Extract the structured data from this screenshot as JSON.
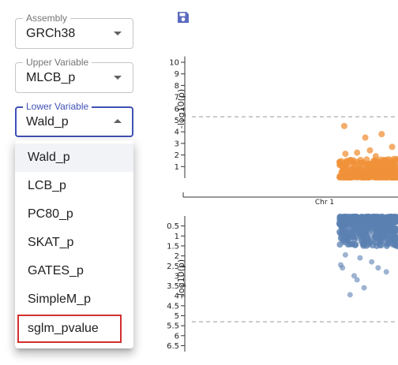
{
  "toolbar": {
    "save_icon": "save-icon"
  },
  "assembly": {
    "label": "Assembly",
    "value": "GRCh38"
  },
  "upper_variable": {
    "label": "Upper Variable",
    "value": "MLCB_p"
  },
  "lower_variable": {
    "label": "Lower Variable",
    "value": "Wald_p",
    "options": [
      "Wald_p",
      "LCB_p",
      "PC80_p",
      "SKAT_p",
      "GATES_p",
      "SimpleM_p",
      "sglm_pvalue"
    ]
  },
  "colors": {
    "accent": "#3f51b5",
    "upper_points": "#f0913a",
    "lower_points": "#5b80b2",
    "highlight_border": "#d32f2f"
  },
  "chart_data": [
    {
      "type": "scatter",
      "name": "upper-manhattan",
      "ylabel": "-log10(p)",
      "yticks": [
        "1",
        "2",
        "3",
        "4",
        "5",
        "6",
        "7",
        "8",
        "9",
        "10"
      ],
      "ylim": [
        0,
        10.5
      ],
      "threshold": 5.3,
      "xlabel": "Chr 1",
      "points": [
        [
          0.08,
          4.5
        ],
        [
          0.44,
          3.5
        ],
        [
          0.72,
          3.8
        ],
        [
          0.1,
          2.1
        ],
        [
          0.52,
          2.4
        ],
        [
          0.3,
          2.2
        ],
        [
          0.9,
          2.7
        ],
        [
          0.62,
          1.9
        ]
      ]
    },
    {
      "type": "scatter",
      "name": "lower-manhattan",
      "ylabel": "-log10(p)",
      "yticks": [
        "0.5",
        "1",
        "1.5",
        "2",
        "2.5",
        "3",
        "3.5",
        "4",
        "4.5",
        "5",
        "5.5",
        "6",
        "6.5"
      ],
      "ylim": [
        0,
        6.8
      ],
      "inverted": true,
      "threshold": 5.3,
      "points": [
        [
          0.1,
          1.95
        ],
        [
          0.35,
          2.1
        ],
        [
          0.05,
          2.6
        ],
        [
          0.55,
          2.3
        ],
        [
          0.25,
          3.0
        ],
        [
          0.8,
          2.8
        ],
        [
          0.18,
          3.95
        ],
        [
          0.42,
          3.6
        ],
        [
          0.66,
          2.6
        ],
        [
          0.3,
          3.2
        ],
        [
          0.02,
          2.45
        ]
      ]
    }
  ]
}
